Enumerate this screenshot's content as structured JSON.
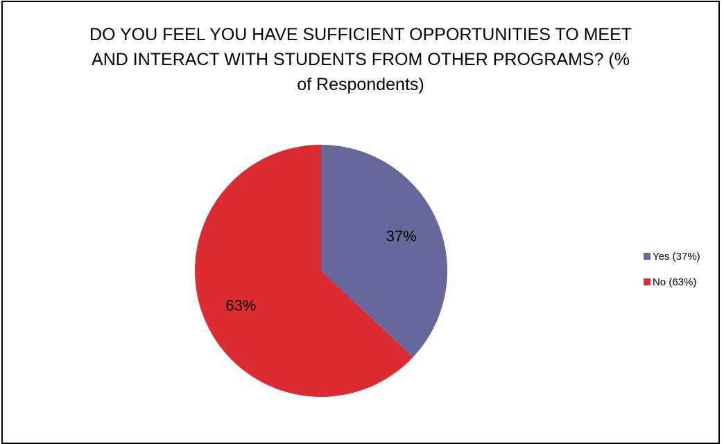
{
  "chart_data": {
    "type": "pie",
    "title_lines": [
      "DO YOU FEEL YOU HAVE SUFFICIENT OPPORTUNITIES TO MEET",
      "AND INTERACT WITH STUDENTS FROM OTHER PROGRAMS? (%",
      "of Respondents)"
    ],
    "slices": [
      {
        "label": "Yes (37%)",
        "value": 37,
        "data_label": "37%",
        "color": "#66679a"
      },
      {
        "label": "No (63%)",
        "value": 63,
        "data_label": "63%",
        "color": "#dc2b33"
      }
    ],
    "legend_position": "right"
  }
}
